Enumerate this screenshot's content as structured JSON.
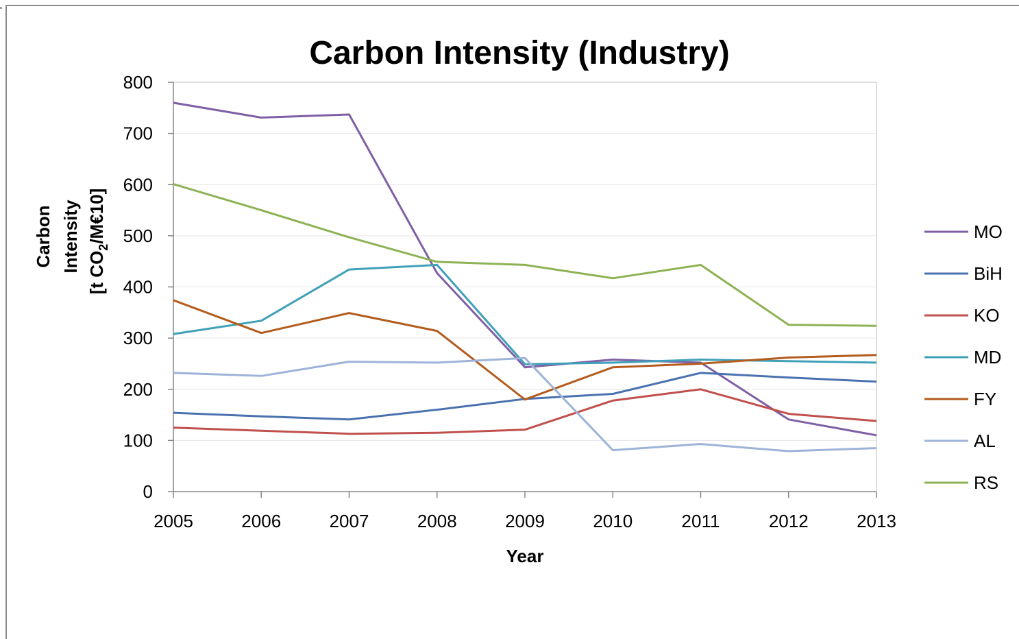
{
  "chart_data": {
    "type": "line",
    "title": "Carbon Intensity (Industry)",
    "xlabel": "Year",
    "ylabel_lines": [
      "Carbon",
      "Intensity",
      "[t CO2/M€10]"
    ],
    "ylabel_unit": {
      "prefix": "[t CO",
      "sub": "2",
      "suffix": "/M€10]"
    },
    "ylim": [
      0,
      800
    ],
    "yticks": [
      0,
      100,
      200,
      300,
      400,
      500,
      600,
      700,
      800
    ],
    "grid": true,
    "legend_position": "right",
    "x": [
      "2005",
      "2006",
      "2007",
      "2008",
      "2009",
      "2010",
      "2011",
      "2012",
      "2013"
    ],
    "series": [
      {
        "name": "MO",
        "color": "#7f5fa6",
        "values": [
          760,
          731,
          737,
          427,
          243,
          258,
          252,
          141,
          110
        ]
      },
      {
        "name": "BiH",
        "color": "#4a72b0",
        "values": [
          154,
          147,
          141,
          160,
          181,
          191,
          232,
          223,
          215
        ]
      },
      {
        "name": "KO",
        "color": "#c0504d",
        "values": [
          125,
          119,
          113,
          115,
          121,
          178,
          200,
          152,
          138
        ]
      },
      {
        "name": "MD",
        "color": "#3fa0b8",
        "values": [
          308,
          334,
          434,
          443,
          249,
          252,
          258,
          255,
          252
        ]
      },
      {
        "name": "FY",
        "color": "#b35c1e",
        "values": [
          374,
          310,
          349,
          314,
          180,
          243,
          250,
          262,
          267
        ]
      },
      {
        "name": "AL",
        "color": "#9db3d8",
        "values": [
          232,
          226,
          254,
          252,
          261,
          81,
          93,
          79,
          85
        ]
      },
      {
        "name": "RS",
        "color": "#8db254",
        "values": [
          601,
          550,
          497,
          449,
          443,
          417,
          443,
          326,
          324
        ]
      }
    ]
  }
}
